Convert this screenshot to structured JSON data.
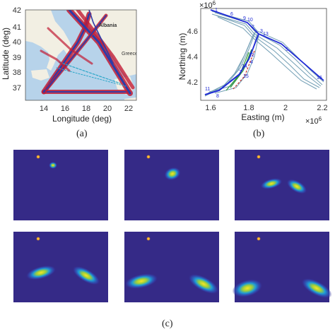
{
  "panel_a": {
    "caption": "(a)",
    "xlabel": "Longitude (deg)",
    "ylabel": "Latitude (deg)",
    "xticks": [
      "14",
      "16",
      "18",
      "20",
      "22"
    ],
    "yticks": [
      "42",
      "41",
      "40",
      "39",
      "38",
      "37"
    ],
    "map_labels": {
      "albania": "Albania",
      "greece": "Greece"
    },
    "colors": {
      "sea": "#b7d3ea",
      "land": "#f2efe3",
      "track_red": "#c21c35",
      "track_blue": "#2d3ba8",
      "track_cyan": "#2aa6c8"
    }
  },
  "panel_b": {
    "caption": "(b)",
    "xlabel": "Easting (m)",
    "ylabel": "Northing (m)",
    "xticks": [
      "1.6",
      "1.8",
      "2",
      "2.2"
    ],
    "yticks": [
      "4.6",
      "4.4",
      "4.2"
    ],
    "x_exponent_base": "×10",
    "x_exponent": "6",
    "y_exponent_base": "×10",
    "y_exponent": "6",
    "waypoint_labels": [
      "1",
      "2",
      "3",
      "4",
      "5",
      "6",
      "7",
      "8",
      "9",
      "10",
      "11",
      "12",
      "13",
      "14",
      "15",
      "16"
    ],
    "colors": {
      "bundle": "#5a8ea8",
      "route": "#1f2ad6",
      "green": "#2f9a3a",
      "red": "#c4302b"
    }
  },
  "panel_c": {
    "caption": "(c)",
    "colors": {
      "background": "#352a87",
      "mid": "#1d9bd8",
      "hot": "#f7e625",
      "marker": "#f39b22"
    }
  }
}
